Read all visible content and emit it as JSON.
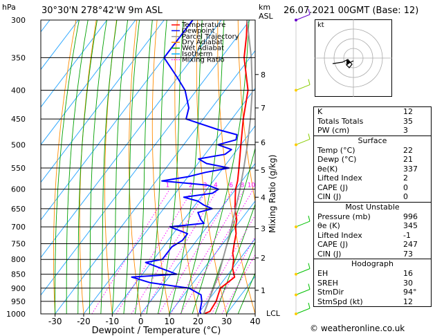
{
  "header": {
    "hpa_label": "hPa",
    "location": "30°30'N  278°42'W  9m  ASL",
    "km_label": "km",
    "asl_label": "ASL",
    "datetime": "26.07.2021  00GMT  (Base: 12)"
  },
  "axes": {
    "xlabel": "Dewpoint / Temperature (°C)",
    "right_label": "Mixing Ratio (g/kg)",
    "lcl_label": "LCL"
  },
  "legend": [
    {
      "label": "Temperature",
      "color": "#ff0000"
    },
    {
      "label": "Dewpoint",
      "color": "#0000ff"
    },
    {
      "label": "Parcel Trajectory",
      "color": "#999999"
    },
    {
      "label": "Dry Adiabat",
      "color": "#ff8c00"
    },
    {
      "label": "Wet Adiabat",
      "color": "#00a000"
    },
    {
      "label": "Isotherm",
      "color": "#00b0ff"
    },
    {
      "label": "Mixing Ratio",
      "color": "#ff00ff"
    }
  ],
  "chart_data": {
    "type": "line",
    "subtype": "skew-t log-p",
    "title": "30°30'N  278°42'W  9m  ASL",
    "xlabel": "Dewpoint / Temperature (°C)",
    "ylabel": "hPa",
    "xlim": [
      -35,
      40
    ],
    "ylim": [
      1000,
      300
    ],
    "x_ticks": [
      -30,
      -20,
      -10,
      0,
      10,
      20,
      30,
      40
    ],
    "pressure_levels": [
      300,
      350,
      400,
      450,
      500,
      550,
      600,
      650,
      700,
      750,
      800,
      850,
      900,
      950,
      1000
    ],
    "km_ticks": [
      {
        "km": "1",
        "p": 908
      },
      {
        "km": "2",
        "p": 795
      },
      {
        "km": "3",
        "p": 705
      },
      {
        "km": "4",
        "p": 620
      },
      {
        "km": "5",
        "p": 555
      },
      {
        "km": "6",
        "p": 495
      },
      {
        "km": "7",
        "p": 430
      },
      {
        "km": "8",
        "p": 375
      }
    ],
    "mixing_ratio_labels": [
      "1",
      "2",
      "3",
      "4",
      "6",
      "8",
      "10",
      "15",
      "20",
      "25"
    ],
    "mixing_ratio_values": [
      1,
      2,
      3,
      4,
      6,
      8,
      10,
      15,
      20,
      25
    ],
    "series": [
      {
        "name": "Temperature",
        "color": "#ff0000",
        "p": [
          1000,
          990,
          950,
          925,
          900,
          880,
          860,
          850,
          830,
          800,
          780,
          750,
          720,
          700,
          680,
          650,
          620,
          600,
          580,
          550,
          500,
          450,
          400,
          350,
          320,
          300
        ],
        "t": [
          22,
          23.5,
          23,
          22,
          21,
          22,
          23,
          22,
          20,
          18,
          16,
          14,
          12,
          10,
          8.5,
          5,
          2,
          0,
          -1.5,
          -4.5,
          -10,
          -16,
          -22,
          -32,
          -37,
          -41
        ]
      },
      {
        "name": "Dewpoint",
        "color": "#0000ff",
        "p": [
          1000,
          990,
          950,
          925,
          900,
          880,
          870,
          860,
          850,
          830,
          810,
          800,
          780,
          760,
          740,
          720,
          700,
          690,
          680,
          660,
          650,
          640,
          630,
          620,
          610,
          600,
          590,
          580,
          570,
          560,
          550,
          540,
          530,
          520,
          510,
          500,
          490,
          480,
          470,
          450,
          430,
          400,
          380,
          350,
          300
        ],
        "t": [
          21,
          20,
          18,
          16,
          10,
          -5,
          -9,
          -13,
          2,
          -5,
          -12,
          -7,
          -7,
          -7,
          -5,
          -5,
          -13,
          -2,
          -4,
          -7,
          -3,
          -7,
          -10,
          -16,
          -7,
          -6,
          -11,
          -28,
          -20,
          -15,
          -8,
          -17,
          -21,
          -13,
          -12,
          -18,
          -13,
          -14,
          -22,
          -36,
          -38,
          -44,
          -50,
          -60,
          -60
        ]
      },
      {
        "name": "Parcel Trajectory",
        "color": "#999999",
        "p": [
          1000,
          950,
          900,
          850,
          800,
          750,
          700,
          650,
          600,
          550,
          500,
          450,
          400,
          350,
          300
        ],
        "t": [
          22,
          20.3,
          18.6,
          16.7,
          14.2,
          11.5,
          8.5,
          5.2,
          1.5,
          -2.8,
          -7.7,
          -13.5,
          -20.5,
          -29.5,
          -41
        ]
      }
    ]
  },
  "wind_barbs": {
    "color": "#00c000",
    "levels_hpa": [
      1000,
      925,
      850,
      700,
      500,
      400,
      300
    ]
  },
  "hodograph": {
    "unit_label": "kt"
  },
  "indices": {
    "k_label": "K",
    "k": "12",
    "tt_label": "Totals Totals",
    "tt": "35",
    "pw_label": "PW (cm)",
    "pw": "3"
  },
  "surface": {
    "title": "Surface",
    "temp_label": "Temp (°C)",
    "temp": "22",
    "dewp_label": "Dewp (°C)",
    "dewp": "21",
    "thetae_label": "θe(K)",
    "thetae": "337",
    "li_label": "Lifted Index",
    "li": "2",
    "cape_label": "CAPE (J)",
    "cape": "0",
    "cin_label": "CIN (J)",
    "cin": "0"
  },
  "most_unstable": {
    "title": "Most Unstable",
    "pressure_label": "Pressure (mb)",
    "pressure": "996",
    "thetae_label": "θe (K)",
    "thetae": "345",
    "li_label": "Lifted Index",
    "li": "-1",
    "cape_label": "CAPE (J)",
    "cape": "247",
    "cin_label": "CIN (J)",
    "cin": "73"
  },
  "hodograph_table": {
    "title": "Hodograph",
    "eh_label": "EH",
    "eh": "16",
    "sreh_label": "SREH",
    "sreh": "30",
    "stmdir_label": "StmDir",
    "stmdir": "94°",
    "stmspd_label": "StmSpd (kt)",
    "stmspd": "12"
  },
  "footer": "© weatheronline.co.uk"
}
